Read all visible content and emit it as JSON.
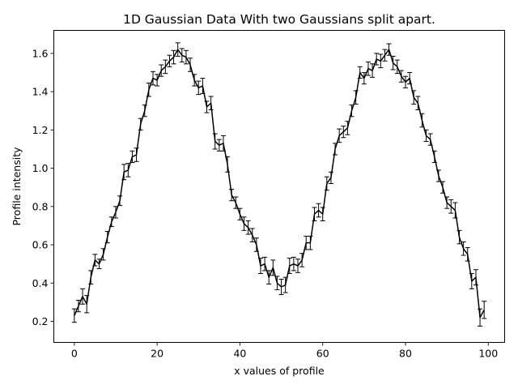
{
  "chart_data": {
    "type": "line",
    "title": "1D Gaussian Data With two Gaussians split apart.",
    "xlabel": "x values of profile",
    "ylabel": "Profile intensity",
    "xlim": [
      -4.95,
      103.95
    ],
    "ylim": [
      0.09,
      1.72
    ],
    "xticks": [
      0,
      20,
      40,
      60,
      80,
      100
    ],
    "yticks": [
      0.2,
      0.4,
      0.6,
      0.8,
      1.0,
      1.2,
      1.4,
      1.6
    ],
    "ytick_labels": [
      "0.2",
      "0.4",
      "0.6",
      "0.8",
      "1.0",
      "1.2",
      "1.4",
      "1.6"
    ],
    "grid": false,
    "series_color": "#000000",
    "x": [
      0,
      1,
      2,
      3,
      4,
      5,
      6,
      7,
      8,
      9,
      10,
      11,
      12,
      13,
      14,
      15,
      16,
      17,
      18,
      19,
      20,
      21,
      22,
      23,
      24,
      25,
      26,
      27,
      28,
      29,
      30,
      31,
      32,
      33,
      34,
      35,
      36,
      37,
      38,
      39,
      40,
      41,
      42,
      43,
      44,
      45,
      46,
      47,
      48,
      49,
      50,
      51,
      52,
      53,
      54,
      55,
      56,
      57,
      58,
      59,
      60,
      61,
      62,
      63,
      64,
      65,
      66,
      67,
      68,
      69,
      70,
      71,
      72,
      73,
      74,
      75,
      76,
      77,
      78,
      79,
      80,
      81,
      82,
      83,
      84,
      85,
      86,
      87,
      88,
      89,
      90,
      91,
      92,
      93,
      94,
      95,
      96,
      97,
      98,
      99
    ],
    "y": [
      0.23,
      0.28,
      0.33,
      0.29,
      0.43,
      0.52,
      0.5,
      0.55,
      0.64,
      0.72,
      0.77,
      0.83,
      0.98,
      0.99,
      1.06,
      1.07,
      1.23,
      1.3,
      1.41,
      1.47,
      1.46,
      1.51,
      1.53,
      1.56,
      1.58,
      1.62,
      1.59,
      1.58,
      1.54,
      1.46,
      1.42,
      1.43,
      1.32,
      1.34,
      1.14,
      1.12,
      1.13,
      1.02,
      0.86,
      0.82,
      0.76,
      0.71,
      0.69,
      0.65,
      0.6,
      0.49,
      0.5,
      0.43,
      0.48,
      0.4,
      0.38,
      0.39,
      0.49,
      0.5,
      0.49,
      0.52,
      0.61,
      0.61,
      0.76,
      0.78,
      0.76,
      0.92,
      0.95,
      1.1,
      1.17,
      1.19,
      1.21,
      1.3,
      1.37,
      1.5,
      1.47,
      1.52,
      1.51,
      1.57,
      1.56,
      1.59,
      1.62,
      1.55,
      1.53,
      1.48,
      1.45,
      1.47,
      1.37,
      1.34,
      1.25,
      1.17,
      1.15,
      1.06,
      0.96,
      0.9,
      0.82,
      0.8,
      0.78,
      0.64,
      0.58,
      0.55,
      0.41,
      0.43,
      0.22,
      0.26
    ],
    "err": [
      0.035,
      0.03,
      0.04,
      0.045,
      0.035,
      0.03,
      0.025,
      0.03,
      0.03,
      0.025,
      0.03,
      0.025,
      0.04,
      0.035,
      0.03,
      0.035,
      0.03,
      0.03,
      0.035,
      0.035,
      0.03,
      0.03,
      0.035,
      0.03,
      0.035,
      0.035,
      0.035,
      0.035,
      0.035,
      0.03,
      0.035,
      0.04,
      0.03,
      0.035,
      0.04,
      0.03,
      0.04,
      0.04,
      0.03,
      0.03,
      0.03,
      0.035,
      0.035,
      0.035,
      0.035,
      0.04,
      0.035,
      0.035,
      0.04,
      0.035,
      0.04,
      0.04,
      0.04,
      0.035,
      0.035,
      0.035,
      0.035,
      0.035,
      0.035,
      0.035,
      0.035,
      0.035,
      0.03,
      0.03,
      0.035,
      0.03,
      0.035,
      0.03,
      0.035,
      0.03,
      0.03,
      0.035,
      0.035,
      0.03,
      0.035,
      0.03,
      0.03,
      0.035,
      0.035,
      0.03,
      0.03,
      0.03,
      0.035,
      0.035,
      0.035,
      0.03,
      0.03,
      0.03,
      0.03,
      0.03,
      0.03,
      0.035,
      0.04,
      0.035,
      0.035,
      0.035,
      0.04,
      0.04,
      0.045,
      0.045
    ]
  }
}
